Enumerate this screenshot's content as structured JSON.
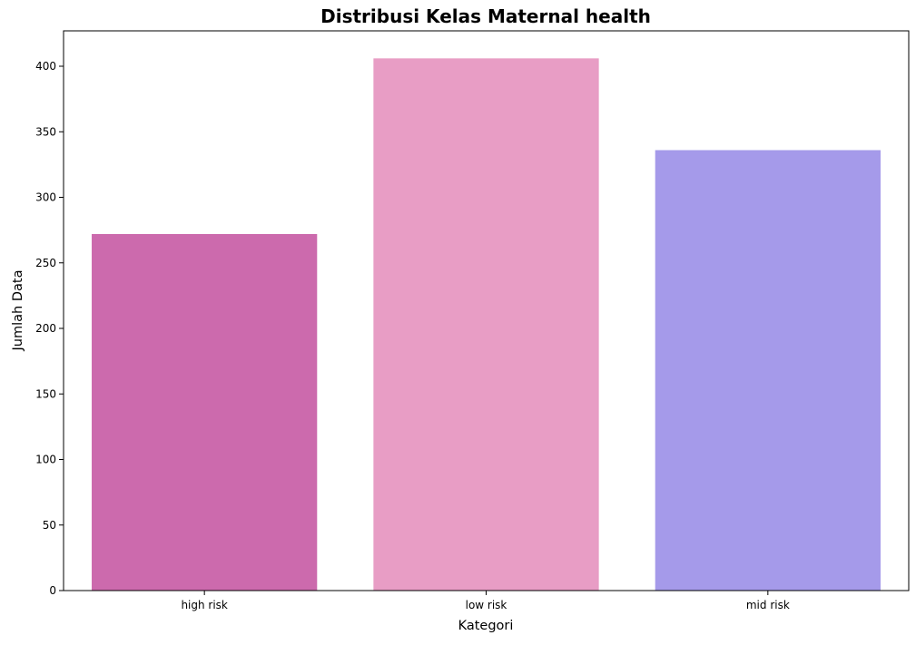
{
  "chart_data": {
    "type": "bar",
    "title": "Distribusi Kelas Maternal health",
    "xlabel": "Kategori",
    "ylabel": "Jumlah Data",
    "categories": [
      "high risk",
      "low risk",
      "mid risk"
    ],
    "values": [
      272,
      406,
      336
    ],
    "colors": [
      "#cc6aad",
      "#e89dc5",
      "#a59aea"
    ],
    "ylim": [
      0,
      427
    ],
    "yticks": [
      0,
      50,
      100,
      150,
      200,
      250,
      300,
      350,
      400
    ],
    "grid": false,
    "legend": "none"
  }
}
